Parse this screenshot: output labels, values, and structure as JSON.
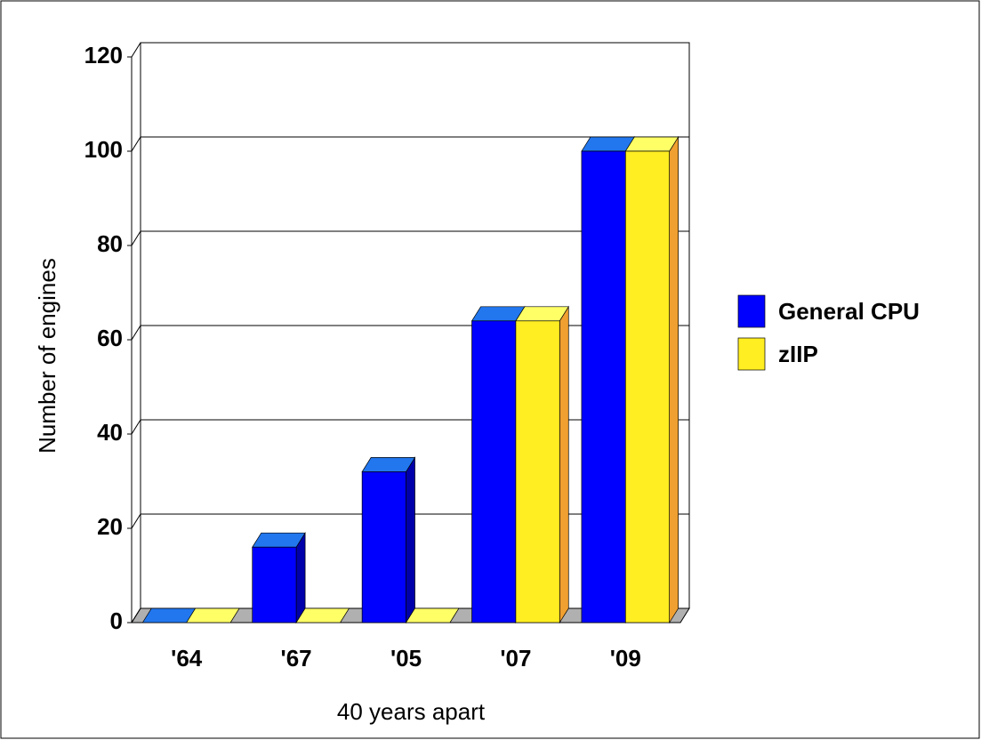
{
  "chart_data": {
    "type": "bar3d",
    "categories": [
      "'64",
      "'67",
      "'05",
      "'07",
      "'09"
    ],
    "series": [
      {
        "name": "General CPU",
        "color": "#0000ff",
        "values": [
          0,
          16,
          32,
          64,
          100
        ]
      },
      {
        "name": "zIIP",
        "color": "#ffee22",
        "values": [
          0,
          0,
          0,
          64,
          100
        ]
      }
    ],
    "x_label": "40 years apart",
    "y_label": "Number of engines",
    "ylim": [
      0,
      120
    ],
    "yticks": [
      0,
      20,
      40,
      60,
      80,
      100,
      120
    ],
    "grid": true,
    "legend": "right"
  }
}
